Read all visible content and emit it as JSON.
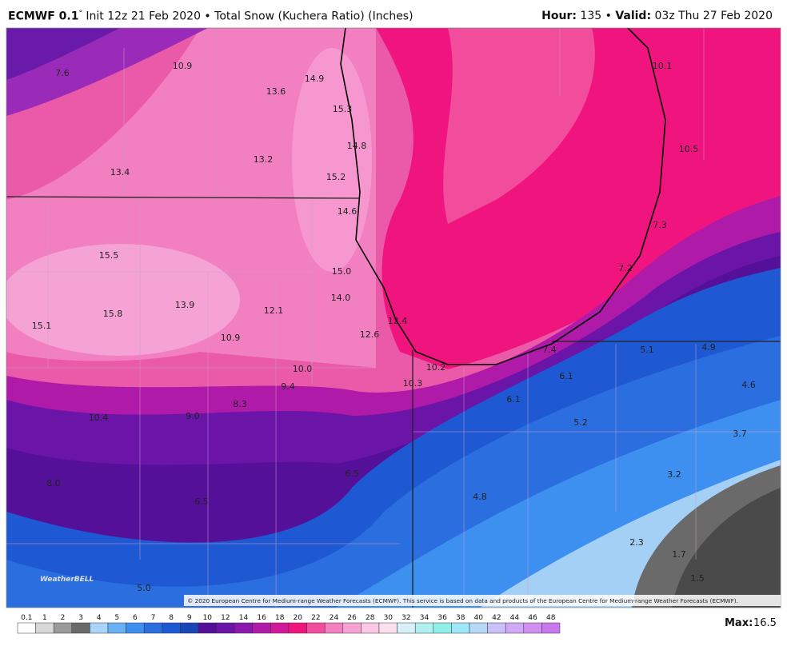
{
  "header": {
    "model": "ECMWF 0.1",
    "degree": "°",
    "description": "Init 12z 21 Feb 2020 • Total Snow (Kuchera Ratio) (Inches)",
    "hour_label": "Hour:",
    "hour": "135 •",
    "valid_label": "Valid:",
    "valid": "03z Thu 27 Feb 2020"
  },
  "map": {
    "labels": [
      "7.6",
      "10.9",
      "13.6",
      "14.9",
      "15.3",
      "14.8",
      "13.2",
      "13.4",
      "15.2",
      "14.6",
      "15.5",
      "15.0",
      "14.0",
      "13.9",
      "12.1",
      "15.8",
      "15.1",
      "12.4",
      "12.6",
      "10.9",
      "10.0",
      "10.2",
      "10.3",
      "9.4",
      "8.3",
      "9.0",
      "10.4",
      "10.1",
      "10.5",
      "7.3",
      "7.2",
      "7.4",
      "5.1",
      "4.9",
      "6.1",
      "6.1",
      "4.6",
      "5.2",
      "3.7",
      "6.5",
      "3.2",
      "8.0",
      "4.8",
      "6.5",
      "2.3",
      "1.7",
      "1.5",
      "5.0"
    ],
    "copyright": "© 2020 European Centre for Medium-range Weather Forecasts (ECMWF). This service is based on data and products of the European Centre for Medium-range Weather Forecasts (ECMWF).",
    "logo": "WeatherBELL"
  },
  "legend": {
    "ticks": [
      "0.1",
      "1",
      "2",
      "3",
      "4",
      "5",
      "6",
      "7",
      "8",
      "9",
      "10",
      "12",
      "14",
      "16",
      "18",
      "20",
      "22",
      "24",
      "26",
      "28",
      "30",
      "32",
      "34",
      "36",
      "38",
      "40",
      "42",
      "44",
      "46",
      "48"
    ],
    "max_label": "Max:",
    "max": "16.5"
  }
}
